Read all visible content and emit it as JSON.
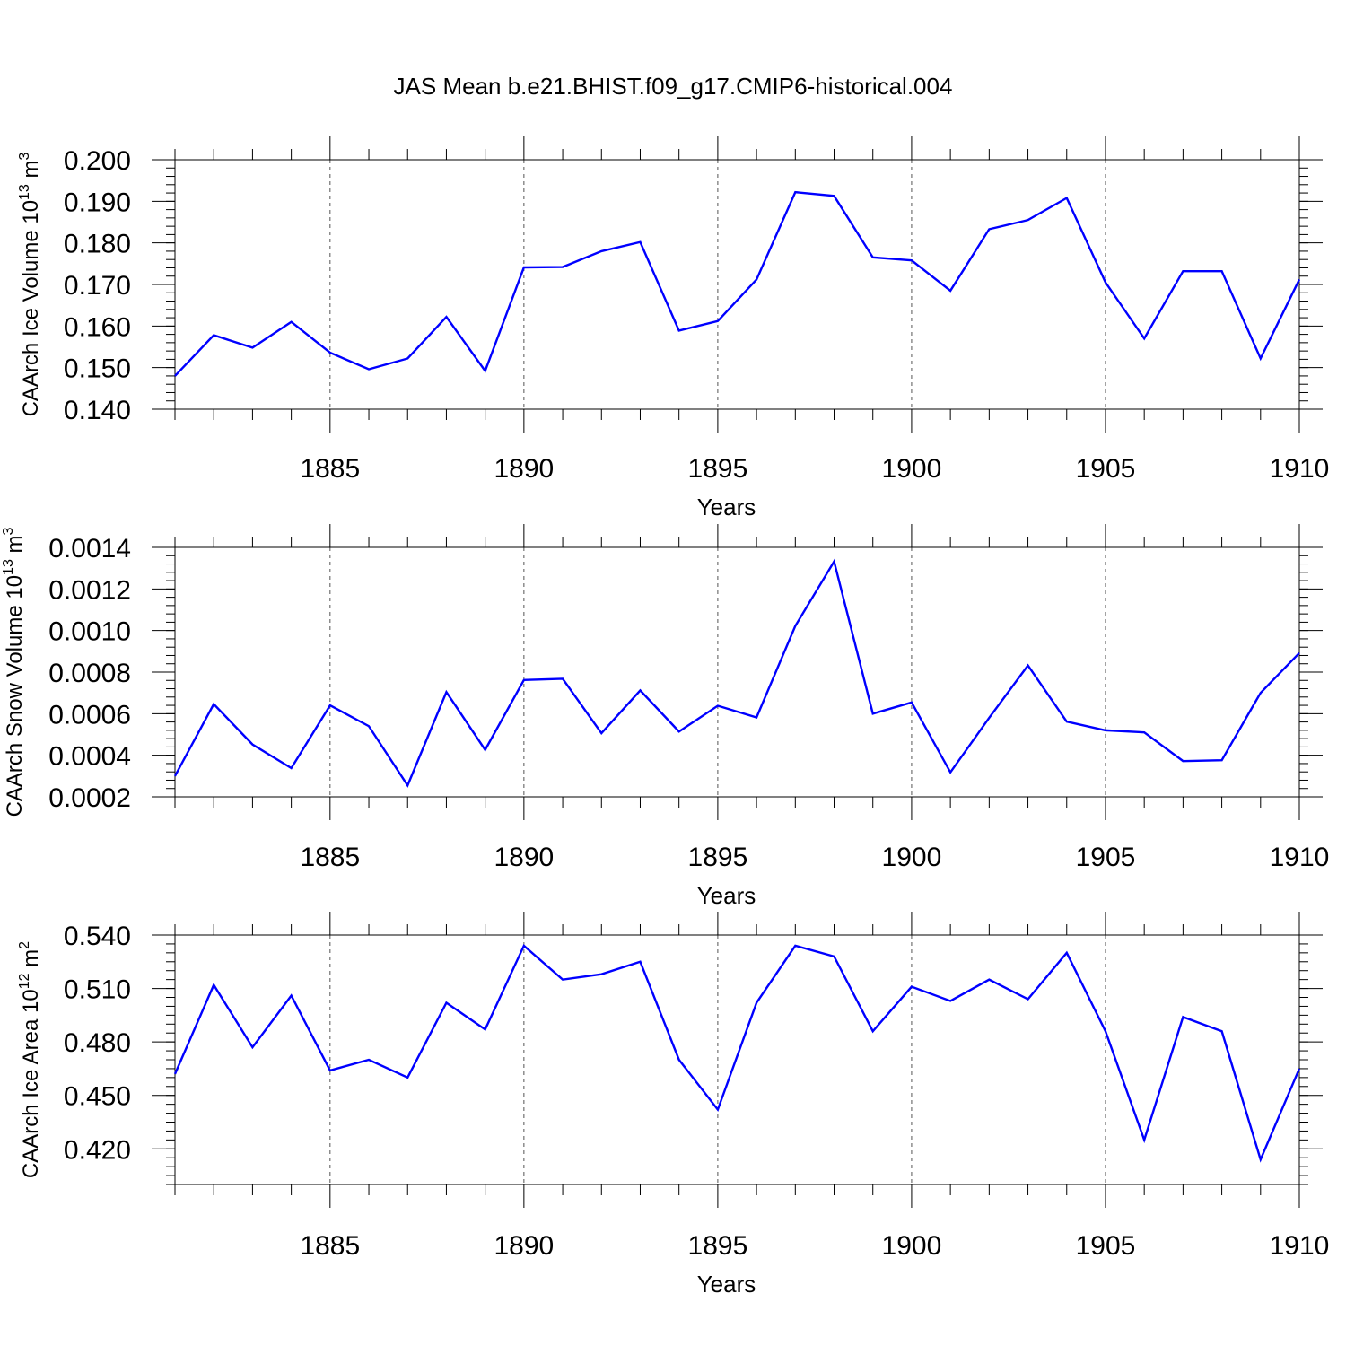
{
  "figure": {
    "title": "JAS Mean b.e21.BHIST.f09_g17.CMIP6-historical.004"
  },
  "chart_data": [
    {
      "type": "line",
      "title": "",
      "xlabel": "Years",
      "ylabel_main": "CAArch Ice Volume 10",
      "ylabel_exp": "13",
      "ylabel_unit": " m",
      "ylabel_unit_exp": "3",
      "xlim": [
        1881,
        1910
      ],
      "ylim": [
        0.14,
        0.2
      ],
      "yticks": [
        0.14,
        0.15,
        0.16,
        0.17,
        0.18,
        0.19,
        0.2
      ],
      "ytick_labels": [
        "0.140",
        "0.150",
        "0.160",
        "0.170",
        "0.180",
        "0.190",
        "0.200"
      ],
      "yminor_step": 0.002,
      "xticks": [
        1885,
        1890,
        1895,
        1900,
        1905,
        1910
      ],
      "xtick_labels": [
        "1885",
        "1890",
        "1895",
        "1900",
        "1905",
        "1910"
      ],
      "series": [
        {
          "name": "CAArch Ice Volume",
          "color": "#0000ff",
          "x": [
            1881,
            1882,
            1883,
            1884,
            1885,
            1886,
            1887,
            1888,
            1889,
            1890,
            1891,
            1892,
            1893,
            1894,
            1895,
            1896,
            1897,
            1898,
            1899,
            1900,
            1901,
            1902,
            1903,
            1904,
            1905,
            1906,
            1907,
            1908,
            1909,
            1910
          ],
          "values": [
            0.148,
            0.1578,
            0.1548,
            0.161,
            0.1536,
            0.1496,
            0.1522,
            0.1622,
            0.1492,
            0.1741,
            0.1742,
            0.178,
            0.1802,
            0.1589,
            0.1612,
            0.1712,
            0.1922,
            0.1913,
            0.1765,
            0.1758,
            0.1685,
            0.1833,
            0.1855,
            0.1908,
            0.1705,
            0.157,
            0.1732,
            0.1732,
            0.1522,
            0.1712
          ]
        }
      ]
    },
    {
      "type": "line",
      "title": "",
      "xlabel": "Years",
      "ylabel_main": "CAArch Snow Volume 10",
      "ylabel_exp": "13",
      "ylabel_unit": " m",
      "ylabel_unit_exp": "3",
      "xlim": [
        1881,
        1910
      ],
      "ylim": [
        0.0002,
        0.0014
      ],
      "yticks": [
        0.0002,
        0.0004,
        0.0006,
        0.0008,
        0.001,
        0.0012,
        0.0014
      ],
      "ytick_labels": [
        "0.0002",
        "0.0004",
        "0.0006",
        "0.0008",
        "0.0010",
        "0.0012",
        "0.0014"
      ],
      "yminor_step": 4e-05,
      "xticks": [
        1885,
        1890,
        1895,
        1900,
        1905,
        1910
      ],
      "xtick_labels": [
        "1885",
        "1890",
        "1895",
        "1900",
        "1905",
        "1910"
      ],
      "series": [
        {
          "name": "CAArch Snow Volume",
          "color": "#0000ff",
          "x": [
            1881,
            1882,
            1883,
            1884,
            1885,
            1886,
            1887,
            1888,
            1889,
            1890,
            1891,
            1892,
            1893,
            1894,
            1895,
            1896,
            1897,
            1898,
            1899,
            1900,
            1901,
            1902,
            1903,
            1904,
            1905,
            1906,
            1907,
            1908,
            1909,
            1910
          ],
          "values": [
            0.0003,
            0.000646,
            0.000452,
            0.000338,
            0.00064,
            0.00054,
            0.000255,
            0.000704,
            0.000426,
            0.000762,
            0.000768,
            0.000506,
            0.000712,
            0.000514,
            0.000638,
            0.000582,
            0.001022,
            0.001332,
            0.0006,
            0.000654,
            0.000318,
            0.00058,
            0.000832,
            0.000562,
            0.00052,
            0.00051,
            0.000372,
            0.000376,
            0.0007,
            0.000892
          ]
        }
      ]
    },
    {
      "type": "line",
      "title": "",
      "xlabel": "Years",
      "ylabel_main": "CAArch Ice Area 10",
      "ylabel_exp": "12",
      "ylabel_unit": " m",
      "ylabel_unit_exp": "2",
      "xlim": [
        1881,
        1910
      ],
      "ylim": [
        0.4,
        0.54
      ],
      "yticks": [
        0.42,
        0.45,
        0.48,
        0.51,
        0.54
      ],
      "ytick_labels": [
        "0.420",
        "0.450",
        "0.480",
        "0.510",
        "0.540"
      ],
      "yminor_step": 0.005,
      "xticks": [
        1885,
        1890,
        1895,
        1900,
        1905,
        1910
      ],
      "xtick_labels": [
        "1885",
        "1890",
        "1895",
        "1900",
        "1905",
        "1910"
      ],
      "series": [
        {
          "name": "CAArch Ice Area",
          "color": "#0000ff",
          "x": [
            1881,
            1882,
            1883,
            1884,
            1885,
            1886,
            1887,
            1888,
            1889,
            1890,
            1891,
            1892,
            1893,
            1894,
            1895,
            1896,
            1897,
            1898,
            1899,
            1900,
            1901,
            1902,
            1903,
            1904,
            1905,
            1906,
            1907,
            1908,
            1909,
            1910
          ],
          "values": [
            0.462,
            0.512,
            0.477,
            0.506,
            0.464,
            0.47,
            0.46,
            0.502,
            0.487,
            0.534,
            0.515,
            0.518,
            0.525,
            0.47,
            0.442,
            0.502,
            0.534,
            0.528,
            0.486,
            0.511,
            0.503,
            0.515,
            0.504,
            0.53,
            0.486,
            0.425,
            0.494,
            0.486,
            0.414,
            0.465
          ]
        }
      ]
    }
  ]
}
